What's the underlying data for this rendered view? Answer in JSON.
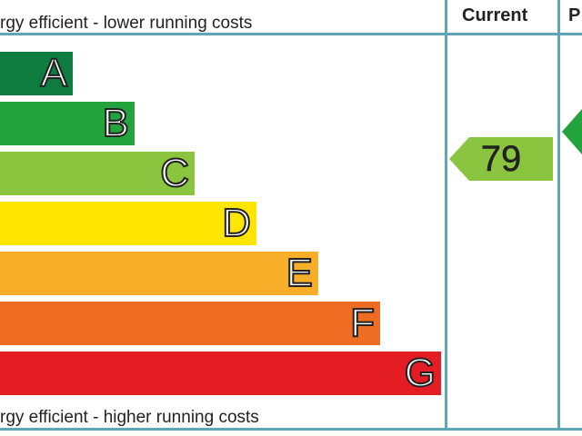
{
  "header_caption": "rgy efficient - lower running costs",
  "footer_caption": "rgy efficient - higher running costs",
  "columns": {
    "current": "Current",
    "potential": "P"
  },
  "bands": [
    {
      "letter": "A",
      "color": "#0e7c3f"
    },
    {
      "letter": "B",
      "color": "#23a33b"
    },
    {
      "letter": "C",
      "color": "#8bc43f"
    },
    {
      "letter": "D",
      "color": "#ffe500"
    },
    {
      "letter": "E",
      "color": "#f9ae2a"
    },
    {
      "letter": "F",
      "color": "#ef6d23"
    },
    {
      "letter": "G",
      "color": "#e31d23"
    }
  ],
  "current_rating": {
    "value": "79",
    "band": "C",
    "color": "#8bc43f"
  },
  "potential_rating": {
    "value": "",
    "band": "B",
    "color": "#23a33b"
  },
  "border_color": "#5ea6b8"
}
